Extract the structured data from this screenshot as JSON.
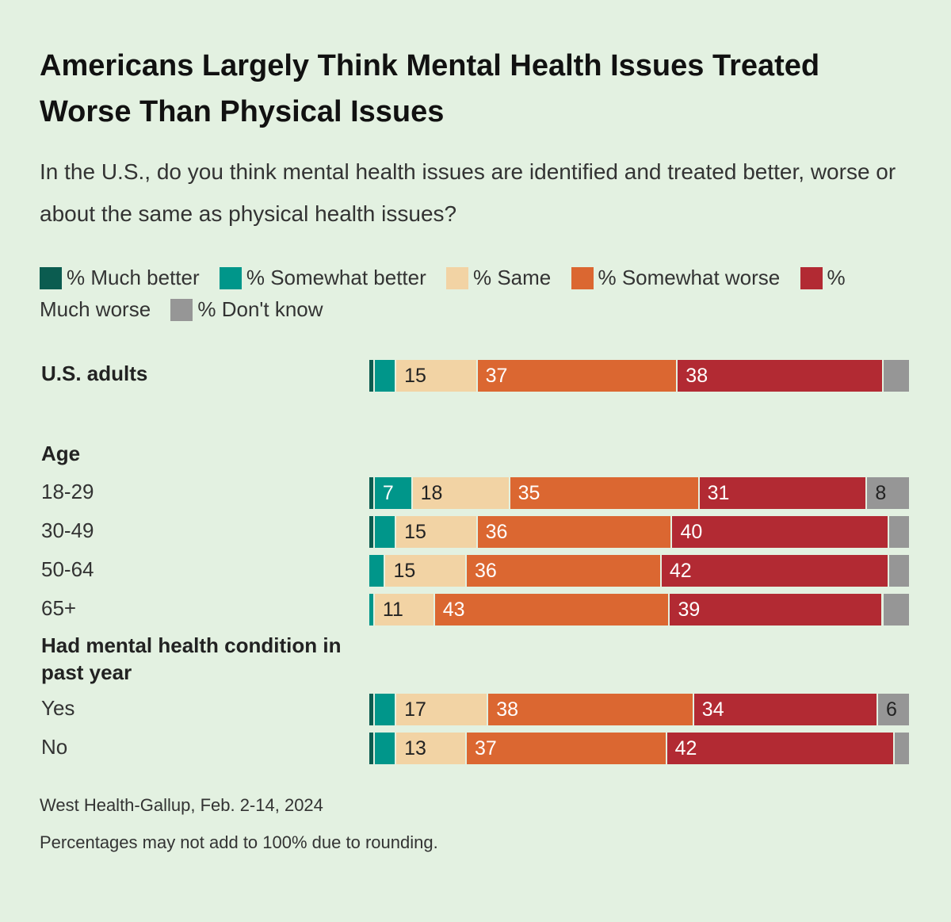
{
  "title": "Americans Largely Think Mental Health Issues Treated Worse Than Physical Issues",
  "subtitle": "In the U.S., do you think mental health issues are identified and treated better, worse or about the same as physical health issues?",
  "legend": [
    {
      "label": "% Much better",
      "color": "#0b5c50"
    },
    {
      "label": "% Somewhat better",
      "color": "#00968a"
    },
    {
      "label": "% Same",
      "color": "#f2d3a4"
    },
    {
      "label": "% Somewhat worse",
      "color": "#db6731"
    },
    {
      "label": "% Much worse",
      "color": "#b22a33"
    },
    {
      "label": "% Don't know",
      "color": "#969696"
    }
  ],
  "chart_data": {
    "type": "bar",
    "orientation": "horizontal",
    "stacked": true,
    "series_names": [
      "% Much better",
      "% Somewhat better",
      "% Same",
      "% Somewhat worse",
      "% Much worse",
      "% Don't know"
    ],
    "groups": [
      {
        "heading": "",
        "rows": [
          {
            "label": "U.S. adults",
            "bold": true,
            "values": [
              1,
              4,
              15,
              37,
              38,
              5
            ],
            "labels": [
              "",
              "",
              "15",
              "37",
              "38",
              ""
            ]
          }
        ]
      },
      {
        "heading": "Age",
        "rows": [
          {
            "label": "18-29",
            "values": [
              1,
              7,
              18,
              35,
              31,
              8
            ],
            "labels": [
              "",
              "7",
              "18",
              "35",
              "31",
              "8"
            ]
          },
          {
            "label": "30-49",
            "values": [
              1,
              4,
              15,
              36,
              40,
              4
            ],
            "labels": [
              "",
              "",
              "15",
              "36",
              "40",
              ""
            ]
          },
          {
            "label": "50-64",
            "values": [
              0,
              3,
              15,
              36,
              42,
              4
            ],
            "labels": [
              "",
              "",
              "15",
              "36",
              "42",
              ""
            ]
          },
          {
            "label": "65+",
            "values": [
              0,
              1,
              11,
              43,
              39,
              5
            ],
            "labels": [
              "",
              "",
              "11",
              "43",
              "39",
              ""
            ]
          }
        ]
      },
      {
        "heading": "Had mental health condition in past year",
        "rows": [
          {
            "label": "Yes",
            "values": [
              1,
              4,
              17,
              38,
              34,
              6
            ],
            "labels": [
              "",
              "",
              "17",
              "38",
              "34",
              "6"
            ]
          },
          {
            "label": "No",
            "values": [
              1,
              4,
              13,
              37,
              42,
              3
            ],
            "labels": [
              "",
              "",
              "13",
              "37",
              "42",
              ""
            ]
          }
        ]
      }
    ]
  },
  "source": "West Health-Gallup, Feb. 2-14, 2024",
  "footnote": "Percentages may not add to 100% due to rounding."
}
